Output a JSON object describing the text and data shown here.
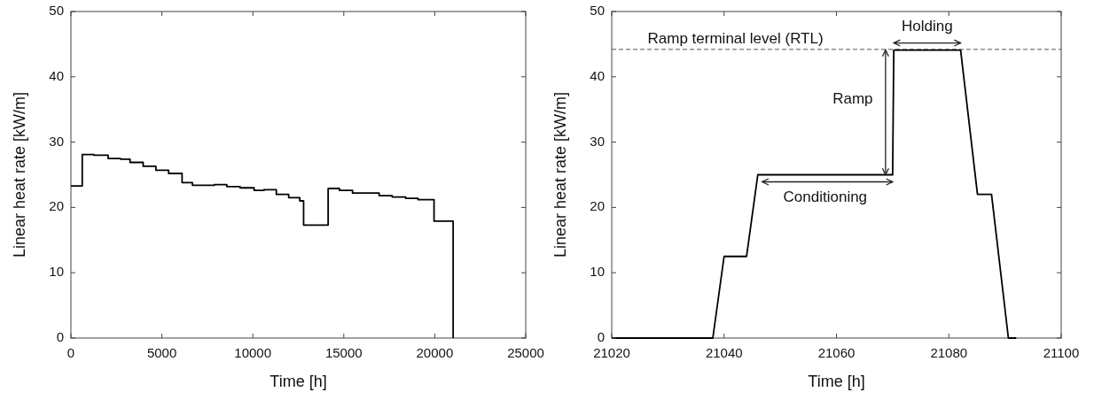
{
  "chart_data": [
    {
      "type": "step",
      "xlabel": "Time [h]",
      "ylabel": "Linear heat rate [kW/m]",
      "xlim": [
        0,
        25000
      ],
      "xticks": [
        0,
        5000,
        10000,
        15000,
        20000,
        25000
      ],
      "ylim": [
        0,
        50
      ],
      "yticks": [
        0,
        10,
        20,
        30,
        40,
        50
      ],
      "series": [
        {
          "color": "#000000",
          "x": [
            0,
            623,
            1265,
            2045,
            2726,
            3250,
            3970,
            4670,
            5370,
            6110,
            6680,
            7890,
            8570,
            9300,
            10070,
            10610,
            11290,
            11970,
            12580,
            12790,
            14140,
            14760,
            15480,
            16940,
            17660,
            18400,
            19080,
            19960,
            21010
          ],
          "values": [
            23.3,
            28.1,
            28.0,
            27.5,
            27.4,
            26.9,
            26.3,
            25.7,
            25.2,
            23.8,
            23.4,
            23.5,
            23.2,
            23.0,
            22.6,
            22.7,
            22.0,
            21.5,
            21.0,
            17.3,
            22.9,
            22.6,
            22.2,
            21.8,
            21.6,
            21.4,
            21.2,
            17.9,
            0
          ]
        }
      ]
    },
    {
      "type": "line",
      "xlabel": "Time [h]",
      "ylabel": "Linear heat rate [kW/m]",
      "xlim": [
        21020,
        21100
      ],
      "xticks": [
        21020,
        21040,
        21060,
        21080,
        21100
      ],
      "ylim": [
        0,
        50
      ],
      "yticks": [
        0,
        10,
        20,
        30,
        40,
        50
      ],
      "series": [
        {
          "color": "#000000",
          "x": [
            21020,
            21038,
            21040,
            21044,
            21046,
            21070,
            21070.2,
            21082.1,
            21085.1,
            21087.6,
            21090.6,
            21092
          ],
          "values": [
            0,
            0,
            12.5,
            12.5,
            25,
            25,
            44.1,
            44.1,
            22,
            22,
            0,
            0
          ]
        }
      ],
      "ref_lines": [
        {
          "axis": "y",
          "value": 44.2,
          "label": "Ramp terminal level (RTL)",
          "color": "#555555",
          "line_style": "dashed"
        }
      ],
      "annotations": [
        "Ramp",
        "Conditioning",
        "Holding"
      ]
    }
  ]
}
